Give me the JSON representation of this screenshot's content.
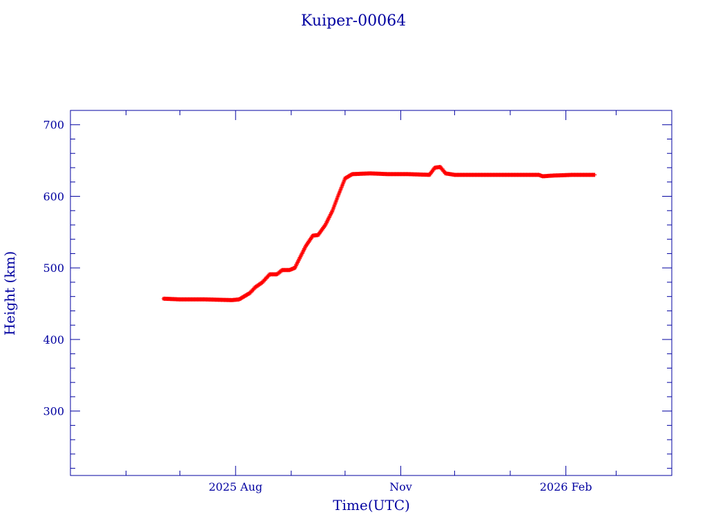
{
  "chart_data": {
    "type": "scatter",
    "title": "Kuiper-00064",
    "xlabel": "Time(UTC)",
    "ylabel": "Height (km)",
    "xlim": [
      "2025-05-01",
      "2026-04-01"
    ],
    "ylim": [
      210,
      720
    ],
    "y_ticks": [
      300,
      400,
      500,
      600,
      700
    ],
    "x_ticks": [
      {
        "date": "2025-08-01",
        "label": "2025 Aug"
      },
      {
        "date": "2025-11-01",
        "label": "Nov"
      },
      {
        "date": "2026-02-01",
        "label": "2026 Feb"
      }
    ],
    "x_minor_ticks": [
      "2025-06-01",
      "2025-07-01",
      "2025-09-01",
      "2025-10-01",
      "2025-12-01",
      "2026-01-01",
      "2026-03-01"
    ],
    "grid": false,
    "series": [
      {
        "color": "#ff0000",
        "marker": "star",
        "points": [
          {
            "x": "2025-06-22",
            "y": 457
          },
          {
            "x": "2025-07-01",
            "y": 456
          },
          {
            "x": "2025-07-15",
            "y": 456
          },
          {
            "x": "2025-07-30",
            "y": 455
          },
          {
            "x": "2025-08-03",
            "y": 456
          },
          {
            "x": "2025-08-09",
            "y": 465
          },
          {
            "x": "2025-08-12",
            "y": 473
          },
          {
            "x": "2025-08-16",
            "y": 480
          },
          {
            "x": "2025-08-20",
            "y": 491
          },
          {
            "x": "2025-08-24",
            "y": 491
          },
          {
            "x": "2025-08-27",
            "y": 497
          },
          {
            "x": "2025-08-31",
            "y": 497
          },
          {
            "x": "2025-09-03",
            "y": 500
          },
          {
            "x": "2025-09-06",
            "y": 515
          },
          {
            "x": "2025-09-09",
            "y": 530
          },
          {
            "x": "2025-09-13",
            "y": 545
          },
          {
            "x": "2025-09-16",
            "y": 546
          },
          {
            "x": "2025-09-20",
            "y": 560
          },
          {
            "x": "2025-09-24",
            "y": 580
          },
          {
            "x": "2025-09-27",
            "y": 600
          },
          {
            "x": "2025-10-01",
            "y": 625
          },
          {
            "x": "2025-10-05",
            "y": 631
          },
          {
            "x": "2025-10-15",
            "y": 632
          },
          {
            "x": "2025-10-25",
            "y": 631
          },
          {
            "x": "2025-11-05",
            "y": 631
          },
          {
            "x": "2025-11-17",
            "y": 630
          },
          {
            "x": "2025-11-20",
            "y": 640
          },
          {
            "x": "2025-11-23",
            "y": 641
          },
          {
            "x": "2025-11-26",
            "y": 632
          },
          {
            "x": "2025-12-01",
            "y": 630
          },
          {
            "x": "2025-12-15",
            "y": 630
          },
          {
            "x": "2026-01-01",
            "y": 630
          },
          {
            "x": "2026-01-17",
            "y": 630
          },
          {
            "x": "2026-01-19",
            "y": 628
          },
          {
            "x": "2026-01-25",
            "y": 629
          },
          {
            "x": "2026-02-05",
            "y": 630
          },
          {
            "x": "2026-02-17",
            "y": 630
          }
        ]
      }
    ]
  }
}
